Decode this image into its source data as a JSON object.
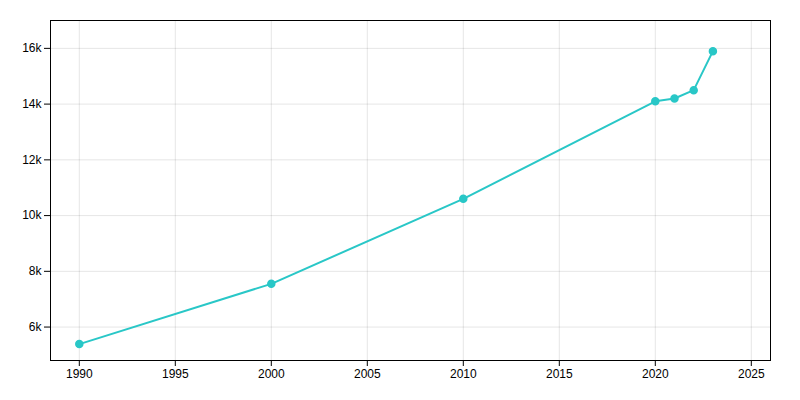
{
  "chart_data": {
    "type": "line",
    "x": [
      1990,
      2000,
      2010,
      2020,
      2021,
      2022,
      2023
    ],
    "values": [
      5388,
      7550,
      10600,
      14100,
      14200,
      14500,
      15900
    ],
    "color": "#29C7C7",
    "marker": "o",
    "xlim": [
      1988.5,
      2026
    ],
    "ylim": [
      4800,
      17000
    ],
    "xticks": [
      1990,
      1995,
      2000,
      2005,
      2010,
      2015,
      2020,
      2025
    ],
    "yticks": [
      {
        "value": 6000,
        "label": "6k"
      },
      {
        "value": 8000,
        "label": "8k"
      },
      {
        "value": 10000,
        "label": "10k"
      },
      {
        "value": 12000,
        "label": "12k"
      },
      {
        "value": 14000,
        "label": "14k"
      },
      {
        "value": 16000,
        "label": "16k"
      }
    ],
    "grid": true
  }
}
